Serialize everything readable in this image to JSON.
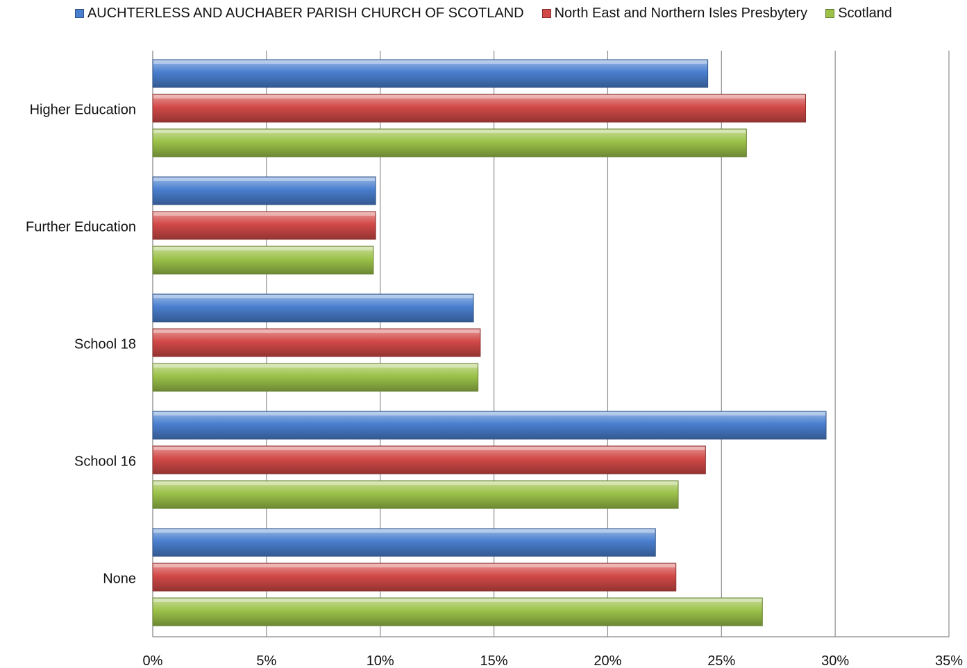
{
  "chart_data": {
    "type": "bar",
    "orientation": "horizontal",
    "categories": [
      "Higher Education",
      "Further Education",
      "School 18",
      "School 16",
      "None"
    ],
    "series": [
      {
        "name": "AUCHTERLESS AND AUCHABER PARISH CHURCH OF SCOTLAND",
        "color": "#4a7fcf",
        "values": [
          24.4,
          9.8,
          14.1,
          29.6,
          22.1
        ]
      },
      {
        "name": "North East and Northern Isles Presbytery",
        "color": "#d24a48",
        "values": [
          28.7,
          9.8,
          14.4,
          24.3,
          23.0
        ]
      },
      {
        "name": "Scotland",
        "color": "#9cc24a",
        "values": [
          26.1,
          9.7,
          14.3,
          23.1,
          26.8
        ]
      }
    ],
    "xlim": [
      0,
      35
    ],
    "xticks": [
      "0%",
      "5%",
      "10%",
      "15%",
      "20%",
      "25%",
      "30%",
      "35%"
    ],
    "xtick_values": [
      0,
      5,
      10,
      15,
      20,
      25,
      30,
      35
    ],
    "grid": true,
    "legend_position": "top"
  }
}
